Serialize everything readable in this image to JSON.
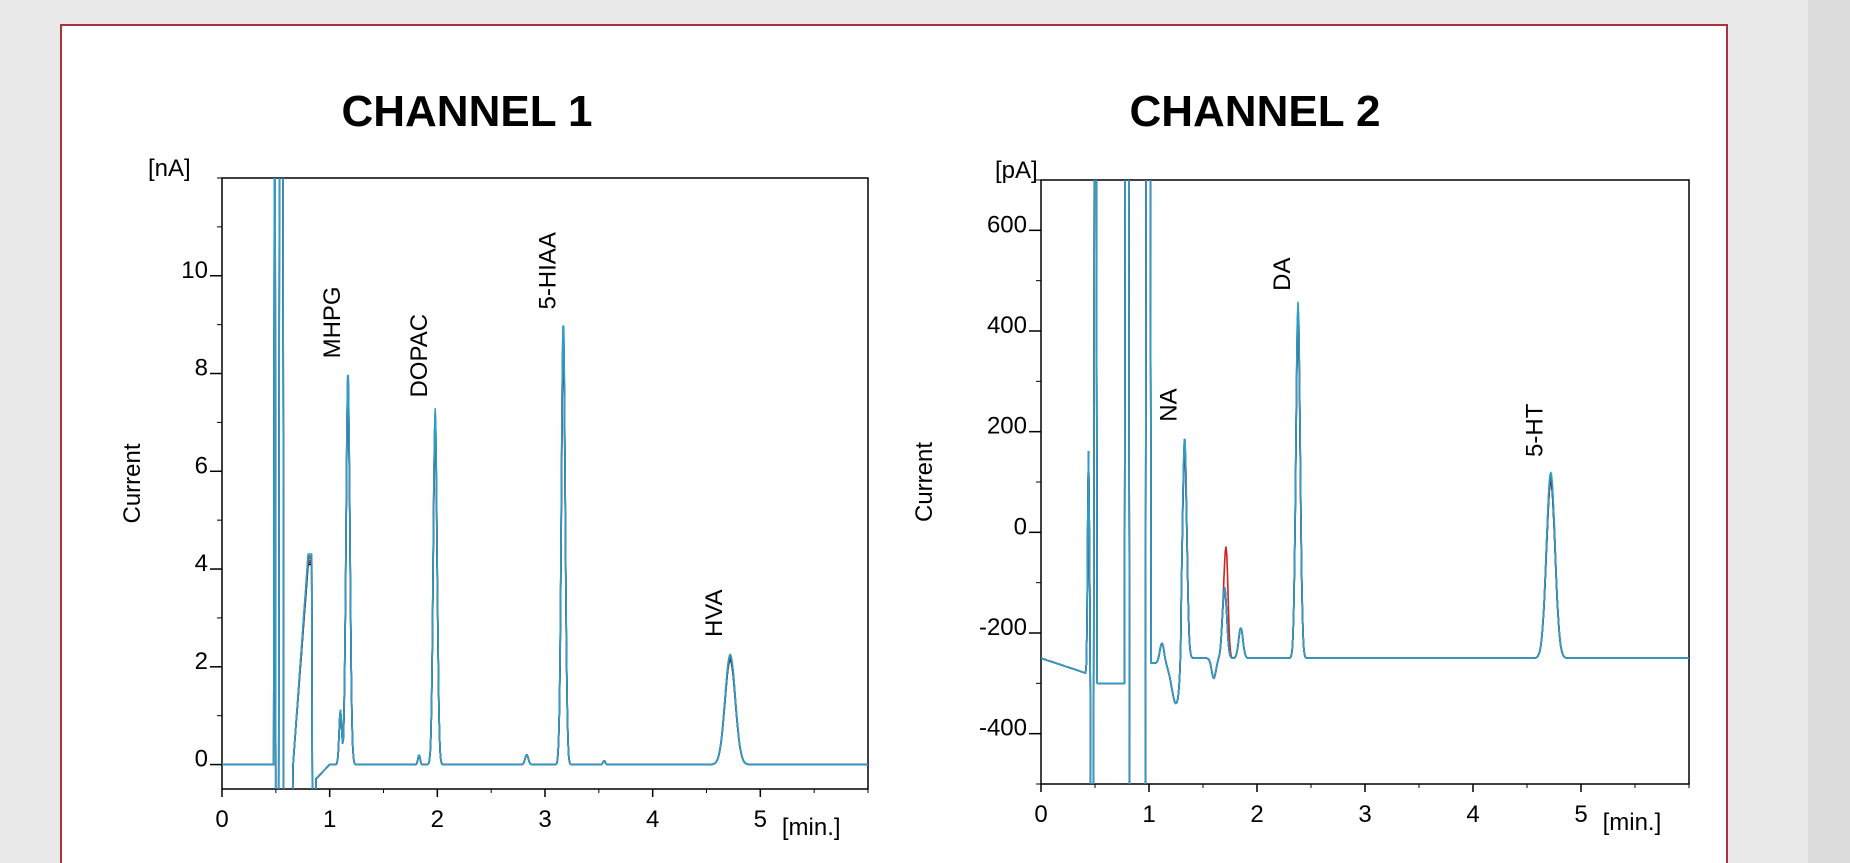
{
  "chart_data": [
    {
      "type": "line",
      "title": "CHANNEL 1",
      "xlabel": "[min.]",
      "ylabel": "Current",
      "yunit": "[nA]",
      "xlim": [
        0,
        6
      ],
      "ylim": [
        -0.5,
        12
      ],
      "xticks": [
        0,
        1,
        2,
        3,
        4,
        5
      ],
      "yticks": [
        0,
        2,
        4,
        6,
        8,
        10
      ],
      "baseline": 0,
      "grid": false,
      "peaks": [
        {
          "name": "MHPG",
          "x": 1.17,
          "y": 7.9
        },
        {
          "name": "DOPAC",
          "x": 1.98,
          "y": 7.1
        },
        {
          "name": "5-HIAA",
          "x": 3.17,
          "y": 8.9
        },
        {
          "name": "HVA",
          "x": 4.72,
          "y": 2.2
        }
      ],
      "series_colors": [
        "#000000",
        "#1a1aa0",
        "#d42020",
        "#1a7a1a",
        "#8a2a8a",
        "#2aa0c8"
      ]
    },
    {
      "type": "line",
      "title": "CHANNEL 2",
      "xlabel": "[min.]",
      "ylabel": "Current",
      "yunit": "[pA]",
      "xlim": [
        0,
        6
      ],
      "ylim": [
        -500,
        700
      ],
      "xticks": [
        0,
        1,
        2,
        3,
        4,
        5
      ],
      "yticks": [
        600,
        400,
        200,
        0,
        -200,
        -400
      ],
      "baseline": -250,
      "grid": false,
      "peaks": [
        {
          "name": "NA",
          "x": 1.33,
          "y": 180
        },
        {
          "name": "DA",
          "x": 2.38,
          "y": 440
        },
        {
          "name": "5-HT",
          "x": 4.72,
          "y": 110
        }
      ],
      "series_colors": [
        "#000000",
        "#1a1aa0",
        "#d42020",
        "#1a7a1a",
        "#8a2a8a",
        "#2aa0c8"
      ]
    }
  ]
}
